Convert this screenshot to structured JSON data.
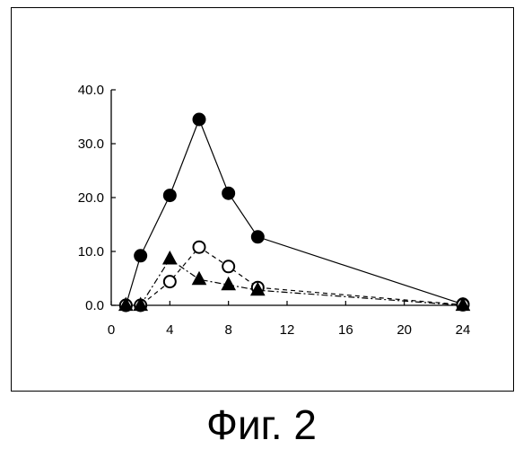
{
  "figure": {
    "caption": "Фиг. 2"
  },
  "chart_data": {
    "type": "line",
    "title": "",
    "xlabel": "",
    "ylabel": "",
    "xlim": [
      0,
      24
    ],
    "ylim": [
      0,
      40
    ],
    "x_ticks": [
      0,
      4,
      8,
      12,
      16,
      20,
      24
    ],
    "x_tick_labels": [
      "0",
      "4",
      "8",
      "12",
      "16",
      "20",
      "24"
    ],
    "y_ticks": [
      0,
      10,
      20,
      30,
      40
    ],
    "y_tick_labels": [
      "0.0",
      "10.0",
      "20.0",
      "30.0",
      "40.0"
    ],
    "grid": false,
    "legend": "none",
    "series": [
      {
        "marker": "filled-circle",
        "line_style": "solid",
        "x": [
          1,
          2,
          4,
          6,
          8,
          10,
          24
        ],
        "y": [
          0.0,
          9.2,
          20.4,
          34.5,
          20.8,
          12.7,
          0.2
        ]
      },
      {
        "marker": "open-circle",
        "line_style": "dashed",
        "x": [
          1,
          2,
          4,
          6,
          8,
          10,
          24
        ],
        "y": [
          0.0,
          0.0,
          4.4,
          10.8,
          7.2,
          3.3,
          0.1
        ]
      },
      {
        "marker": "filled-triangle",
        "line_style": "dash-dot",
        "x": [
          1,
          2,
          4,
          6,
          8,
          10,
          24
        ],
        "y": [
          0.0,
          0.0,
          8.6,
          4.8,
          3.8,
          2.8,
          0.0
        ]
      }
    ],
    "colors": {
      "ink": "#000000",
      "background": "#ffffff"
    }
  }
}
